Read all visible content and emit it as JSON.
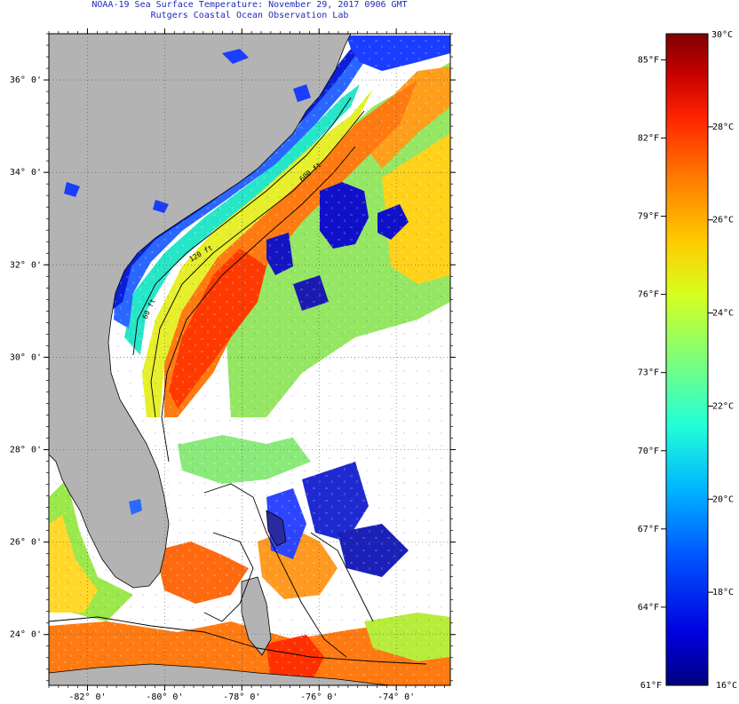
{
  "title": {
    "line1": "NOAA-19 Sea Surface Temperature:  November 29, 2017 0906 GMT",
    "line2": "Rutgers Coastal Ocean Observation Lab"
  },
  "map": {
    "lon_range": [
      -83,
      -72.6
    ],
    "lat_range": [
      22.9,
      37.0
    ],
    "lat_labels": [
      {
        "lat": 36,
        "text": "36° 0'"
      },
      {
        "lat": 34,
        "text": "34° 0'"
      },
      {
        "lat": 32,
        "text": "32° 0'"
      },
      {
        "lat": 30,
        "text": "30° 0'"
      },
      {
        "lat": 28,
        "text": "28° 0'"
      },
      {
        "lat": 26,
        "text": "26° 0'"
      },
      {
        "lat": 24,
        "text": "24° 0'"
      }
    ],
    "lon_labels": [
      {
        "lon": -82,
        "text": "-82° 0'"
      },
      {
        "lon": -80,
        "text": "-80° 0'"
      },
      {
        "lon": -78,
        "text": "-78° 0'"
      },
      {
        "lon": -76,
        "text": "-76° 0'"
      },
      {
        "lon": -74,
        "text": "-74° 0'"
      }
    ],
    "contour_labels": {
      "c120": "120 ft",
      "c60": "60 ft",
      "c600": "600 ft"
    },
    "colors": {
      "land": "#b3b3b3",
      "cloud": "#ffffff",
      "coastline": "#000000",
      "title_text": "#1e2bb8"
    }
  },
  "colorbar": {
    "min_f": 61,
    "max_f": 86,
    "min_c": 16,
    "max_c": 30,
    "f_labels": [
      {
        "v": 85,
        "text": "85°F"
      },
      {
        "v": 82,
        "text": "82°F"
      },
      {
        "v": 79,
        "text": "79°F"
      },
      {
        "v": 76,
        "text": "76°F"
      },
      {
        "v": 73,
        "text": "73°F"
      },
      {
        "v": 70,
        "text": "70°F"
      },
      {
        "v": 67,
        "text": "67°F"
      },
      {
        "v": 64,
        "text": "64°F"
      }
    ],
    "c_labels": [
      {
        "v": 28,
        "text": "28°C"
      },
      {
        "v": 26,
        "text": "26°C"
      },
      {
        "v": 24,
        "text": "24°C"
      },
      {
        "v": 22,
        "text": "22°C"
      },
      {
        "v": 20,
        "text": "20°C"
      },
      {
        "v": 18,
        "text": "18°C"
      }
    ],
    "end_labels": {
      "bottom_f": "61°F",
      "top_c": "30°C",
      "bottom_c": "16°C"
    },
    "gradient": [
      "#00007f",
      "#0000e0",
      "#0055ff",
      "#00b5ff",
      "#22ffd7",
      "#7dff7a",
      "#d7ff1f",
      "#ffcc00",
      "#ff7a00",
      "#ff2400",
      "#c40000",
      "#7f0000"
    ]
  }
}
